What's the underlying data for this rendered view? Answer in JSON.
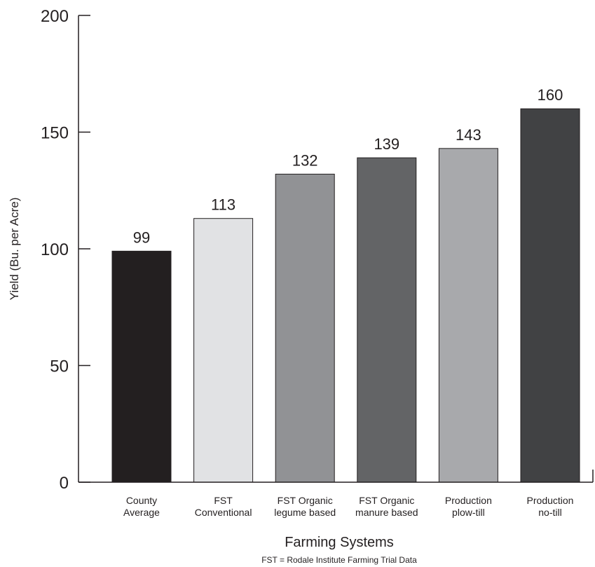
{
  "chart_data": {
    "type": "bar",
    "categories": [
      [
        "County",
        "Average"
      ],
      [
        "FST",
        "Conventional"
      ],
      [
        "FST Organic",
        "legume based"
      ],
      [
        "FST Organic",
        "manure based"
      ],
      [
        "Production",
        "plow-till"
      ],
      [
        "Production",
        "no-till"
      ]
    ],
    "values": [
      99,
      113,
      132,
      139,
      143,
      160
    ],
    "data_labels": [
      "99",
      "113",
      "132",
      "139",
      "143",
      "160"
    ],
    "bar_colors": [
      "#231f20",
      "#e1e2e4",
      "#919295",
      "#636466",
      "#a8a9ac",
      "#414244"
    ],
    "title": "",
    "xlabel": "Farming Systems",
    "ylabel": "Yield (Bu. per Acre)",
    "ylim": [
      0,
      200
    ],
    "yticks": [
      0,
      50,
      100,
      150,
      200
    ],
    "ytick_labels": [
      "0",
      "50",
      "100",
      "150",
      "200"
    ],
    "grid": false,
    "footnote": "FST = Rodale Institute Farming Trial Data"
  }
}
